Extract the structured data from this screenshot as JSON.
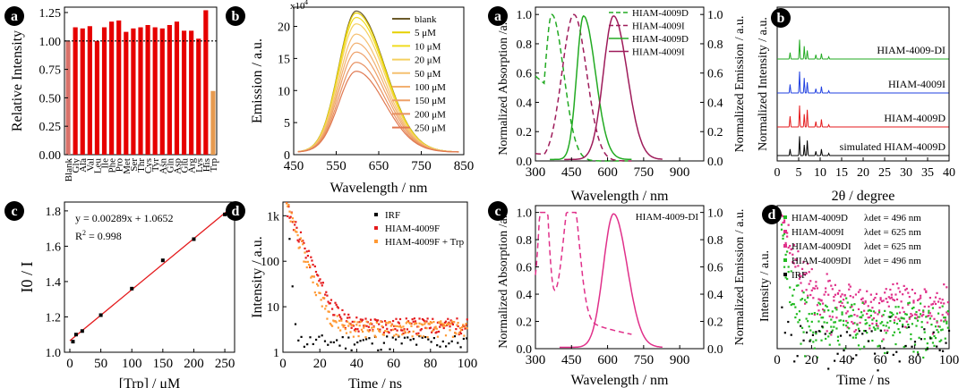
{
  "chart_data": [
    {
      "panel": "a",
      "type": "bar",
      "xlabel": "",
      "ylabel": "Relative Intensity",
      "ylim": [
        0,
        1.25
      ],
      "yticks": [
        "0.00",
        "0.25",
        "0.50",
        "0.75",
        "1.00",
        "1.25"
      ],
      "reference_line": 1.0,
      "categories": [
        "Blank",
        "Gly",
        "Ala",
        "Val",
        "Leu",
        "Ile",
        "Phe",
        "Pro",
        "Met",
        "Ser",
        "Thr",
        "Cys",
        "Tyr",
        "Asn",
        "Gln",
        "Asp",
        "Glu",
        "Arg",
        "Lys",
        "His",
        "Trp"
      ],
      "values": [
        1.0,
        1.12,
        1.11,
        1.13,
        1.0,
        1.12,
        1.17,
        1.18,
        1.08,
        1.11,
        1.12,
        1.14,
        1.12,
        1.11,
        1.14,
        1.17,
        1.09,
        1.09,
        1.02,
        1.27,
        0.56
      ],
      "colors": [
        "#d9726a",
        "#e60000",
        "#e60000",
        "#e60000",
        "#e60000",
        "#e60000",
        "#e60000",
        "#e60000",
        "#e60000",
        "#e60000",
        "#e60000",
        "#e60000",
        "#e60000",
        "#e60000",
        "#e60000",
        "#e60000",
        "#e60000",
        "#e60000",
        "#e60000",
        "#e60000",
        "#e69a50"
      ]
    },
    {
      "panel": "b",
      "type": "line",
      "xlabel": "Wavelength / nm",
      "ylabel": "Emission / a.u.",
      "yscale_label": "x10",
      "yscale_exp": "4",
      "xlim": [
        450,
        850
      ],
      "ylim": [
        0,
        230000
      ],
      "xticks": [
        450,
        550,
        650,
        750,
        850
      ],
      "xticklabels": [
        "450",
        "550",
        "650",
        "750",
        "850"
      ],
      "yticks": [
        0,
        50000,
        100000,
        150000,
        200000
      ],
      "yticklabels": [
        "0",
        "5",
        "10",
        "15",
        "20"
      ],
      "peak_nm": 597,
      "series": [
        {
          "name": "blank",
          "peak": 220000,
          "color": "#6b5a2a"
        },
        {
          "name": "5 μM",
          "peak": 217000,
          "color": "#e6d000"
        },
        {
          "name": "10 μM",
          "peak": 210000,
          "color": "#f0dc20"
        },
        {
          "name": "20 μM",
          "peak": 200000,
          "color": "#f5d060"
        },
        {
          "name": "50 μM",
          "peak": 184000,
          "color": "#f5c070"
        },
        {
          "name": "100 μM",
          "peak": 170000,
          "color": "#f2b070"
        },
        {
          "name": "150 μM",
          "peak": 156000,
          "color": "#eea068"
        },
        {
          "name": "200 μM",
          "peak": 140000,
          "color": "#e89060"
        },
        {
          "name": "250 μM",
          "peak": 126000,
          "color": "#e07850"
        }
      ]
    },
    {
      "panel": "c",
      "type": "scatter",
      "xlabel": "[Trp] / μM",
      "ylabel": "I0 / I",
      "xlim": [
        0,
        260
      ],
      "ylim": [
        1.0,
        1.85
      ],
      "xticks": [
        0,
        50,
        100,
        150,
        200,
        250
      ],
      "yticks": [
        1.0,
        1.2,
        1.4,
        1.6,
        1.8
      ],
      "yticklabels": [
        "1.0",
        "1.2",
        "1.4",
        "1.6",
        "1.8"
      ],
      "x": [
        5,
        10,
        20,
        50,
        100,
        150,
        200,
        250
      ],
      "y": [
        1.06,
        1.1,
        1.12,
        1.21,
        1.36,
        1.52,
        1.64,
        1.78
      ],
      "fit": {
        "slope": 0.00289,
        "intercept": 1.0652
      },
      "equation": "y = 0.00289x + 1.0652",
      "r2": "R",
      "r2_sup": "2",
      "r2_value": " = 0.998"
    },
    {
      "panel": "d",
      "type": "scatter",
      "xlabel": "Time / ns",
      "ylabel": "Intensity / a.u.",
      "xlim": [
        0,
        100
      ],
      "yscale": "log",
      "ylim": [
        1,
        2000
      ],
      "xticks": [
        0,
        20,
        40,
        60,
        80,
        100
      ],
      "yticks": [
        1,
        10,
        100,
        1000
      ],
      "yticklabels": [
        "1",
        "10",
        "100",
        "1k"
      ],
      "series": [
        {
          "name": "IRF",
          "color": "#000000",
          "tau": 0.8,
          "a": 1500,
          "floor": 1.5
        },
        {
          "name": "HIAM-4009F",
          "color": "#e41a1c",
          "tau": 4.5,
          "a": 1500,
          "floor": 3.5
        },
        {
          "name": "HIAM-4009F + Trp",
          "color": "#ff9933",
          "tau": 3.8,
          "a": 1500,
          "floor": 3
        }
      ]
    },
    {
      "panel": "a",
      "type": "line",
      "xlabel": "Wavelength / nm",
      "ylabel": "Normalized Absorption /a.u.",
      "ylabel_right": "Normalized Emission / a.u.",
      "xlim": [
        300,
        1000
      ],
      "ylim": [
        0,
        1.05
      ],
      "xticks": [
        300,
        450,
        600,
        750,
        900
      ],
      "yticks": [
        0,
        0.2,
        0.4,
        0.6,
        0.8,
        1.0
      ],
      "yticklabels": [
        "0.0",
        "0.2",
        "0.4",
        "0.6",
        "0.8",
        "1.0"
      ],
      "series": [
        {
          "name": "HIAM-4009D",
          "kind": "absorption",
          "style": "dashed",
          "color": "#22aa22",
          "peak": 368,
          "sl": 40,
          "sr": 70,
          "x0": 300,
          "x1": 700,
          "y0": 0.58
        },
        {
          "name": "HIAM-4009I",
          "kind": "absorption",
          "style": "dashed",
          "color": "#9e1b5a",
          "peak": 460,
          "sl": 70,
          "sr": 75,
          "x0": 300,
          "x1": 700,
          "y0": 0.05
        },
        {
          "name": "HIAM-4009D",
          "kind": "emission",
          "style": "solid",
          "color": "#22aa22",
          "peak": 500,
          "sl": 40,
          "sr": 70,
          "x0": 360,
          "x1": 700
        },
        {
          "name": "HIAM-4009I",
          "kind": "emission",
          "style": "solid",
          "color": "#9e1b5a",
          "peak": 625,
          "sl": 60,
          "sr": 80,
          "x0": 420,
          "x1": 830
        }
      ]
    },
    {
      "panel": "b",
      "type": "line",
      "xlabel": "2θ / degree",
      "ylabel": "Normalized Intensity / a.u.",
      "xlim": [
        0,
        40
      ],
      "xticks": [
        0,
        5,
        10,
        15,
        20,
        25,
        30,
        35,
        40
      ],
      "series": [
        {
          "name": "HIAM-4009-DI",
          "color": "#22aa22"
        },
        {
          "name": "HIAM-4009I",
          "color": "#1f3fe0"
        },
        {
          "name": "HIAM-4009D",
          "color": "#e41a1c"
        },
        {
          "name": "simulated HIAM-4009D",
          "color": "#000000"
        }
      ],
      "peaks_2theta": [
        3.0,
        5.2,
        6.3,
        7.0,
        9.0,
        10.3,
        12.0
      ]
    },
    {
      "panel": "c",
      "type": "line",
      "xlabel": "Wavelength / nm",
      "ylabel": "Normalized Absorption /a.u.",
      "ylabel_right": "Normalized Emission / a.u.",
      "xlim": [
        300,
        1000
      ],
      "ylim": [
        0,
        1.05
      ],
      "xticks": [
        300,
        450,
        600,
        750,
        900
      ],
      "yticks": [
        0,
        0.2,
        0.4,
        0.6,
        0.8,
        1.0
      ],
      "yticklabels": [
        "0.0",
        "0.2",
        "0.4",
        "0.6",
        "0.8",
        "1.0"
      ],
      "legend": "HIAM-4009-DI",
      "color": "#e0308a",
      "absorption_bands": [
        {
          "peak": 335,
          "height": 1.0,
          "width": 25
        },
        {
          "peak": 450,
          "height": 0.93,
          "width": 45
        }
      ],
      "emission": {
        "peak": 625,
        "sl": 60,
        "sr": 80
      }
    },
    {
      "panel": "d",
      "type": "scatter",
      "xlabel": "Time / ns",
      "ylabel": "Intensity / a.u.",
      "xlim": [
        0,
        100
      ],
      "xticks": [
        0,
        20,
        40,
        60,
        80,
        100
      ],
      "series": [
        {
          "name": "HIAM-4009D",
          "det": "λdet = 496 nm",
          "color": "#22bb22",
          "tau": 3.0,
          "floor": 0.12
        },
        {
          "name": "HIAM-4009I",
          "det": "λdet = 625 nm",
          "color": "#e0308a",
          "tau": 6.0,
          "floor": 0.18
        },
        {
          "name": "HIAM-4009DI",
          "det": "λdet = 625 nm",
          "color": "#e0308a",
          "tau": 8.0,
          "floor": 0.2
        },
        {
          "name": "HIAM-4009DI",
          "det": "λdet = 496 nm",
          "color": "#22bb22",
          "tau": 4.0,
          "floor": 0.15
        },
        {
          "name": "IRF",
          "det": "",
          "color": "#000000",
          "tau": 0.8,
          "floor": 0.1
        }
      ]
    }
  ],
  "panel_letters": [
    "a",
    "b",
    "c",
    "d",
    "a",
    "b",
    "c",
    "d"
  ]
}
